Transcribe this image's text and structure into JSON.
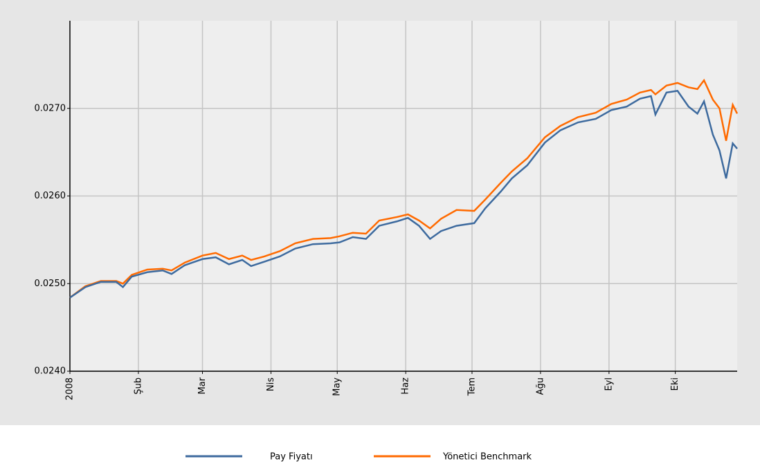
{
  "chart_data": {
    "type": "line",
    "x": [
      0,
      7,
      14,
      21,
      24,
      28,
      35,
      42,
      46,
      52,
      60,
      66,
      72,
      78,
      82,
      88,
      95,
      102,
      110,
      118,
      122,
      128,
      134,
      140,
      148,
      153,
      158,
      163,
      168,
      175,
      183,
      188,
      195,
      200,
      207,
      215,
      222,
      230,
      238,
      245,
      252,
      258,
      263,
      265,
      270,
      275,
      280,
      284,
      287,
      291,
      294,
      297,
      300,
      302
    ],
    "series": [
      {
        "name": "Pay Fiyatı",
        "color": "#3d6a9e",
        "values": [
          0.02484,
          0.02496,
          0.02502,
          0.02502,
          0.02496,
          0.02508,
          0.02513,
          0.02515,
          0.02511,
          0.02521,
          0.02528,
          0.0253,
          0.02522,
          0.02527,
          0.0252,
          0.02525,
          0.02531,
          0.0254,
          0.02545,
          0.02546,
          0.02547,
          0.02553,
          0.02551,
          0.02566,
          0.02571,
          0.02575,
          0.02566,
          0.02551,
          0.0256,
          0.02566,
          0.02569,
          0.02586,
          0.02605,
          0.0262,
          0.02635,
          0.02661,
          0.02675,
          0.02684,
          0.02688,
          0.02698,
          0.02702,
          0.02711,
          0.02714,
          0.02693,
          0.02718,
          0.0272,
          0.02702,
          0.02694,
          0.02708,
          0.0267,
          0.02652,
          0.0262,
          0.0266,
          0.02654
        ]
      },
      {
        "name": "Yönetici Benchmark",
        "color": "#ff6a00",
        "values": [
          0.02484,
          0.02497,
          0.02503,
          0.02503,
          0.025,
          0.0251,
          0.02516,
          0.02517,
          0.02515,
          0.02524,
          0.02532,
          0.02535,
          0.02528,
          0.02532,
          0.02527,
          0.02531,
          0.02537,
          0.02546,
          0.02551,
          0.02552,
          0.02554,
          0.02558,
          0.02557,
          0.02572,
          0.02576,
          0.02579,
          0.02572,
          0.02563,
          0.02574,
          0.02584,
          0.02583,
          0.02596,
          0.02615,
          0.02628,
          0.02643,
          0.02667,
          0.0268,
          0.0269,
          0.02695,
          0.02705,
          0.0271,
          0.02718,
          0.02721,
          0.02716,
          0.02726,
          0.02729,
          0.02724,
          0.02722,
          0.02732,
          0.0271,
          0.027,
          0.02663,
          0.02704,
          0.02694
        ]
      }
    ],
    "xlim": [
      0,
      302
    ],
    "xticks": [
      {
        "value": 0,
        "label": "2008"
      },
      {
        "value": 31,
        "label": "Şub"
      },
      {
        "value": 60,
        "label": "Mar"
      },
      {
        "value": 91,
        "label": "Nis"
      },
      {
        "value": 121,
        "label": "May"
      },
      {
        "value": 152,
        "label": "Haz"
      },
      {
        "value": 182,
        "label": "Tem"
      },
      {
        "value": 213,
        "label": "Ağu"
      },
      {
        "value": 244,
        "label": "Eyl"
      },
      {
        "value": 274,
        "label": "Eki"
      }
    ],
    "ylim": [
      0.024,
      0.028
    ],
    "yticks": [
      {
        "value": 0.024,
        "label": "0.0240"
      },
      {
        "value": 0.025,
        "label": "0.0250"
      },
      {
        "value": 0.026,
        "label": "0.0260"
      },
      {
        "value": 0.027,
        "label": "0.0270"
      }
    ],
    "grid": true,
    "legend": "bottom"
  }
}
